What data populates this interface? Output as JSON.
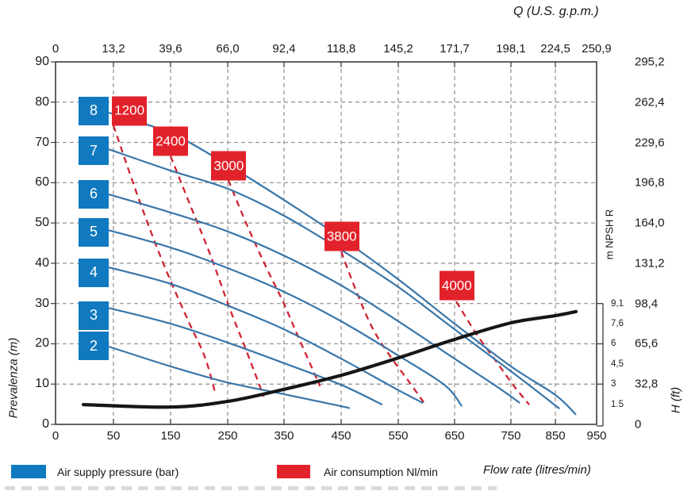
{
  "axes": {
    "top_axis_label": "Q (U.S. g.p.m.)",
    "left_axis_label": "Prevalenza (m)",
    "right_axis_label": "H (ft)",
    "npsh_axis_label": "m NPSH R",
    "bottom_axis_label": "Flow rate (litres/min)"
  },
  "legend": {
    "blue_label": "Air supply pressure (bar)",
    "red_label": "Air consumption Nl/min"
  },
  "colors": {
    "pressure_box": "#1079bf",
    "consumption_box": "#e2222a",
    "blue_curve": "#3876a9",
    "red_curve": "#cf2333",
    "npsh_curve": "#161616",
    "grid": "#8f8f8f",
    "border": "#3c3c3c"
  },
  "chart_data": {
    "type": "line",
    "title": "",
    "x_axis": {
      "label": "Flow rate (litres/min)",
      "tick_values": [
        0,
        50,
        150,
        250,
        350,
        450,
        550,
        650,
        750,
        850,
        950
      ],
      "tick_labels": [
        "0",
        "50",
        "150",
        "250",
        "350",
        "450",
        "550",
        "650",
        "750",
        "850",
        "950"
      ],
      "positions": [
        0,
        0.107,
        0.2126,
        0.3182,
        0.4223,
        0.5279,
        0.6334,
        0.7375,
        0.8416,
        0.9238,
        1
      ]
    },
    "top_axis": {
      "label": "Q (U.S. g.p.m.)",
      "tick_labels": [
        "0",
        "13,2",
        "39,6",
        "66,0",
        "92,4",
        "118,8",
        "145,2",
        "171,7",
        "198,1",
        "224,5",
        "250,9"
      ]
    },
    "y_axis": {
      "label": "Prevalenza (m)",
      "min": 0,
      "max": 90,
      "tick_step": 10
    },
    "right_axis": {
      "label": "H (ft)",
      "tick_labels_bottom_up": [
        "0",
        "32,8",
        "65,6",
        "98,4",
        "131,2",
        "164,0",
        "196,8",
        "229,6",
        "262,4",
        "295,2"
      ]
    },
    "npsh_axis": {
      "label": "m NPSH R",
      "ticks": [
        {
          "label": "9,1",
          "head": 30
        },
        {
          "label": "7,6",
          "head": 25
        },
        {
          "label": "6",
          "head": 20
        },
        {
          "label": "4,5",
          "head": 15
        },
        {
          "label": "3",
          "head": 10
        },
        {
          "label": "1.5",
          "head": 5
        }
      ],
      "bracket_heads": [
        30,
        20,
        10,
        0
      ]
    },
    "grid": true,
    "legend_position": "bottom",
    "blue_series_name": "Air supply pressure (bar)",
    "blue_series": [
      {
        "label": "8",
        "label_head": 77.8,
        "points": [
          [
            46,
            77.4
          ],
          [
            150,
            72.3
          ],
          [
            250,
            64.4
          ],
          [
            350,
            55.7
          ],
          [
            450,
            46.3
          ],
          [
            550,
            36.0
          ],
          [
            650,
            25.0
          ],
          [
            750,
            14.4
          ],
          [
            850,
            7.3
          ],
          [
            900,
            2.4
          ]
        ]
      },
      {
        "label": "7",
        "label_head": 67.9,
        "points": [
          [
            46,
            68.3
          ],
          [
            150,
            63.0
          ],
          [
            250,
            58.5
          ],
          [
            350,
            51.8
          ],
          [
            450,
            43.3
          ],
          [
            550,
            34.1
          ],
          [
            650,
            23.6
          ],
          [
            750,
            13.2
          ],
          [
            860,
            3.9
          ]
        ]
      },
      {
        "label": "6",
        "label_head": 57.2,
        "points": [
          [
            46,
            57.1
          ],
          [
            150,
            52.6
          ],
          [
            250,
            47.9
          ],
          [
            350,
            41.9
          ],
          [
            450,
            34.5
          ],
          [
            550,
            25.6
          ],
          [
            650,
            16.3
          ],
          [
            730,
            8.9
          ],
          [
            770,
            5.3
          ]
        ]
      },
      {
        "label": "5",
        "label_head": 47.7,
        "points": [
          [
            46,
            48.2
          ],
          [
            150,
            43.9
          ],
          [
            250,
            38.8
          ],
          [
            350,
            32.9
          ],
          [
            450,
            25.6
          ],
          [
            550,
            17.1
          ],
          [
            632,
            9.8
          ],
          [
            663,
            4.5
          ]
        ]
      },
      {
        "label": "4",
        "label_head": 37.7,
        "points": [
          [
            46,
            39.0
          ],
          [
            150,
            34.9
          ],
          [
            250,
            29.5
          ],
          [
            350,
            23.6
          ],
          [
            450,
            16.3
          ],
          [
            550,
            8.5
          ],
          [
            594,
            5.3
          ]
        ]
      },
      {
        "label": "3",
        "label_head": 27.0,
        "points": [
          [
            46,
            28.9
          ],
          [
            150,
            25.0
          ],
          [
            250,
            20.3
          ],
          [
            350,
            15.2
          ],
          [
            450,
            9.8
          ],
          [
            522,
            4.9
          ]
        ]
      },
      {
        "label": "2",
        "label_head": 19.4,
        "points": [
          [
            46,
            19.3
          ],
          [
            150,
            14.4
          ],
          [
            250,
            10.4
          ],
          [
            350,
            7.5
          ],
          [
            450,
            4.5
          ],
          [
            465,
            4.0
          ]
        ]
      }
    ],
    "red_series_name": "Air consumption Nl/min",
    "red_series": [
      {
        "label": "1200",
        "label_pos": [
          78,
          77.8
        ],
        "points": [
          [
            50,
            74.2
          ],
          [
            94,
            56.1
          ],
          [
            136,
            40.4
          ],
          [
            178,
            26.6
          ],
          [
            210,
            16.7
          ],
          [
            229,
            7.3
          ]
        ]
      },
      {
        "label": "2400",
        "label_pos": [
          150,
          70.3
        ],
        "points": [
          [
            150,
            66.6
          ],
          [
            185,
            54.2
          ],
          [
            219,
            42.3
          ],
          [
            254,
            28.6
          ],
          [
            282,
            18.7
          ],
          [
            314,
            6.9
          ]
        ]
      },
      {
        "label": "3000",
        "label_pos": [
          252,
          64.2
        ],
        "points": [
          [
            251,
            60.7
          ],
          [
            282,
            50.2
          ],
          [
            317,
            39.4
          ],
          [
            348,
            30.5
          ],
          [
            378,
            20.7
          ],
          [
            413,
            9.5
          ]
        ]
      },
      {
        "label": "3800",
        "label_pos": [
          451,
          46.6
        ],
        "points": [
          [
            450,
            42.9
          ],
          [
            478,
            32.5
          ],
          [
            506,
            23.6
          ],
          [
            537,
            16.7
          ],
          [
            568,
            10.8
          ],
          [
            596,
            5.3
          ]
        ]
      },
      {
        "label": "4000",
        "label_pos": [
          654,
          34.4
        ],
        "points": [
          [
            653,
            30.5
          ],
          [
            688,
            22.6
          ],
          [
            723,
            15.8
          ],
          [
            757,
            9.5
          ],
          [
            791,
            4.9
          ]
        ]
      }
    ],
    "npsh_curve": {
      "name": "NPSH R",
      "points": [
        [
          24,
          4.9
        ],
        [
          150,
          4.3
        ],
        [
          250,
          5.7
        ],
        [
          350,
          8.7
        ],
        [
          450,
          12.2
        ],
        [
          550,
          16.5
        ],
        [
          650,
          21.1
        ],
        [
          750,
          25.2
        ],
        [
          850,
          27.0
        ],
        [
          900,
          28.0
        ]
      ]
    }
  }
}
